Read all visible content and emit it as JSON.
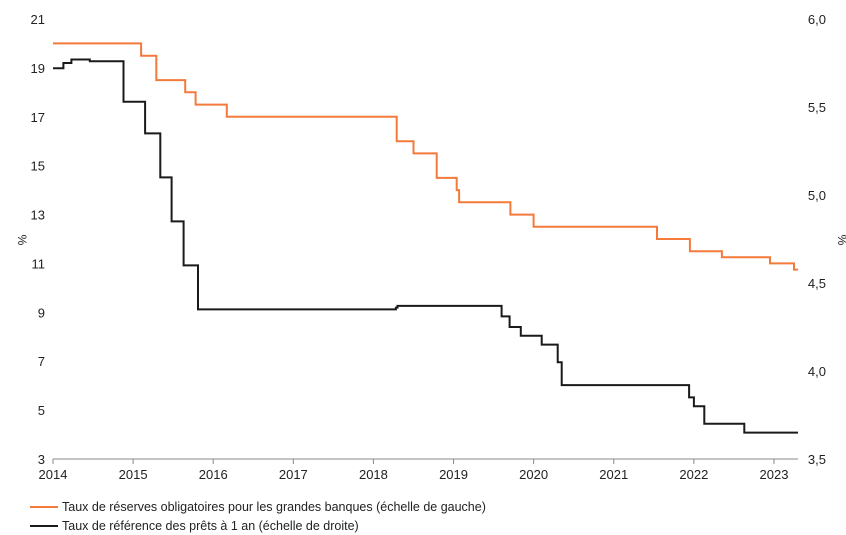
{
  "chart_data": {
    "type": "line",
    "x_range": [
      2014,
      2023.3
    ],
    "x_ticks": [
      "2014",
      "2015",
      "2016",
      "2017",
      "2018",
      "2019",
      "2020",
      "2021",
      "2022",
      "2023"
    ],
    "left_axis": {
      "label": "%",
      "ylim": [
        3,
        21
      ],
      "ticks": [
        "3",
        "5",
        "7",
        "9",
        "11",
        "13",
        "15",
        "17",
        "19",
        "21"
      ]
    },
    "right_axis": {
      "label": "%",
      "ylim": [
        3.5,
        6.0
      ],
      "ticks": [
        "3,5",
        "4,0",
        "4,5",
        "5,0",
        "5,5",
        "6,0"
      ]
    },
    "grid": false,
    "legend_position": "bottom-left",
    "series": [
      {
        "name": "Taux de réserves obligatoires pour les grandes banques (échelle de gauche)",
        "axis": "left",
        "color": "#f47a3c",
        "step": true,
        "points": [
          [
            2014.0,
            20.0
          ],
          [
            2015.1,
            19.5
          ],
          [
            2015.29,
            18.5
          ],
          [
            2015.65,
            18.0
          ],
          [
            2015.78,
            17.5
          ],
          [
            2016.17,
            17.0
          ],
          [
            2018.29,
            16.0
          ],
          [
            2018.5,
            15.5
          ],
          [
            2018.79,
            14.5
          ],
          [
            2019.04,
            14.0
          ],
          [
            2019.07,
            13.5
          ],
          [
            2019.71,
            13.0
          ],
          [
            2020.0,
            12.5
          ],
          [
            2021.54,
            12.0
          ],
          [
            2021.95,
            11.5
          ],
          [
            2022.35,
            11.25
          ],
          [
            2022.95,
            11.0
          ],
          [
            2023.25,
            10.75
          ],
          [
            2023.3,
            10.75
          ]
        ]
      },
      {
        "name": "Taux de référence des prêts à 1 an (échelle de droite)",
        "axis": "right",
        "color": "#1a1a1a",
        "step": true,
        "points": [
          [
            2014.0,
            5.72
          ],
          [
            2014.13,
            5.75
          ],
          [
            2014.23,
            5.77
          ],
          [
            2014.46,
            5.76
          ],
          [
            2014.88,
            5.53
          ],
          [
            2015.15,
            5.35
          ],
          [
            2015.34,
            5.1
          ],
          [
            2015.48,
            4.85
          ],
          [
            2015.63,
            4.6
          ],
          [
            2015.81,
            4.35
          ],
          [
            2018.28,
            4.36
          ],
          [
            2018.3,
            4.37
          ],
          [
            2019.6,
            4.31
          ],
          [
            2019.7,
            4.25
          ],
          [
            2019.84,
            4.2
          ],
          [
            2020.1,
            4.15
          ],
          [
            2020.3,
            4.05
          ],
          [
            2020.35,
            3.92
          ],
          [
            2021.94,
            3.85
          ],
          [
            2022.0,
            3.8
          ],
          [
            2022.13,
            3.7
          ],
          [
            2022.63,
            3.65
          ],
          [
            2023.3,
            3.65
          ]
        ]
      }
    ]
  }
}
